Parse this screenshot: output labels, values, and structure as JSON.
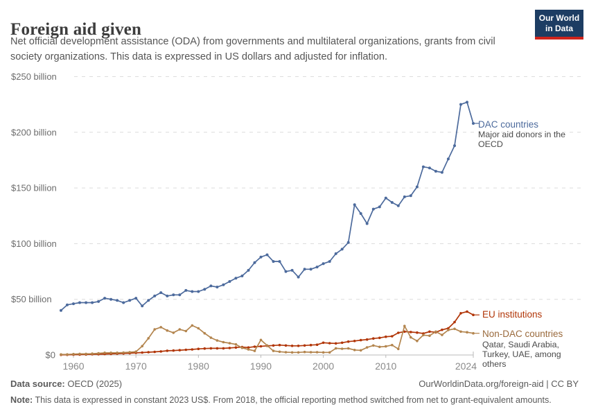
{
  "header": {
    "title": "Foreign aid given",
    "subtitle": "Net official development assistance (ODA) from governments and multilateral organizations, grants from civil society organizations. This data is expressed in US dollars and adjusted for inflation.",
    "logo": {
      "line1": "Our World",
      "line2": "in Data",
      "bg_color": "#1d3d63",
      "bar_color": "#cf241c"
    }
  },
  "chart_data": {
    "type": "line",
    "title": "Foreign aid given",
    "unit": "US$ billion (constant 2023 US$)",
    "x_range": [
      1958,
      2024
    ],
    "ylim": [
      0,
      250
    ],
    "grid": "dashed-horizontal",
    "legend_position": "right-end-labels",
    "xticks": [
      1960,
      1970,
      1980,
      1990,
      2000,
      2010,
      2024
    ],
    "yticks": [
      {
        "value": 0,
        "label": "$0"
      },
      {
        "value": 50,
        "label": "$50 billion"
      },
      {
        "value": 100,
        "label": "$100 billion"
      },
      {
        "value": 150,
        "label": "$150 billion"
      },
      {
        "value": 200,
        "label": "$200 billion"
      },
      {
        "value": 250,
        "label": "$250 billion"
      }
    ],
    "series": [
      {
        "name": "DAC countries",
        "annotation": "Major aid donors in the OECD",
        "color": "#4C6A9C",
        "values": [
          40,
          45,
          46,
          47,
          47,
          47,
          48,
          51,
          50,
          49,
          47,
          49,
          51,
          44,
          49,
          53,
          56,
          53,
          54,
          54,
          58,
          57,
          57,
          59,
          62,
          61,
          63,
          66,
          69,
          71,
          76,
          83,
          88,
          90,
          84,
          84,
          75,
          76,
          70,
          77,
          77,
          79,
          82,
          84,
          91,
          95,
          101,
          135,
          127,
          118,
          131,
          133,
          141,
          137,
          134,
          142,
          143,
          151,
          169,
          168,
          165,
          164,
          176,
          188,
          225,
          227,
          208
        ]
      },
      {
        "name": "EU institutions",
        "annotation": "",
        "color": "#B13507",
        "values": [
          0.1,
          0.2,
          0.3,
          0.4,
          0.5,
          0.6,
          0.7,
          0.9,
          1,
          1.2,
          1.4,
          1.6,
          1.9,
          2.2,
          2.5,
          2.8,
          3.2,
          3.8,
          4,
          4.3,
          4.7,
          5,
          5.5,
          5.8,
          6,
          6,
          6,
          6.3,
          6.7,
          7.1,
          6.7,
          7.5,
          7.8,
          8.2,
          8.5,
          8.9,
          8.5,
          8.2,
          8.2,
          8.5,
          8.9,
          9.2,
          11,
          10.6,
          10.4,
          11,
          12,
          12.6,
          13.3,
          13.9,
          14.8,
          15.4,
          16.4,
          16.8,
          19.9,
          21,
          20.6,
          20.1,
          19.3,
          21,
          20.4,
          22.6,
          24,
          29.5,
          37.5,
          39,
          36
        ]
      },
      {
        "name": "Non-DAC countries",
        "annotation": "Qatar, Saudi Arabia, Turkey, UAE, among others",
        "color": "#B3854E",
        "values": [
          0.5,
          0.5,
          0.8,
          1,
          1,
          1.2,
          1.5,
          2,
          2,
          2,
          2.2,
          2.5,
          3,
          8,
          15,
          23,
          25,
          22,
          20,
          23,
          21.5,
          26.5,
          24,
          19.5,
          15.5,
          13,
          11.5,
          10.6,
          9.5,
          6.4,
          5,
          3.7,
          13.5,
          8.5,
          3.7,
          2.9,
          2.5,
          2.3,
          2.3,
          2.7,
          2.5,
          2.5,
          2.3,
          2.3,
          6,
          5.6,
          5.9,
          4.5,
          4.2,
          6.8,
          8.5,
          7.3,
          7.7,
          8.9,
          5.4,
          26,
          15.8,
          12.6,
          17.9,
          17.3,
          21,
          18,
          22.4,
          23.5,
          21,
          20.4,
          19.5
        ]
      }
    ]
  },
  "footer": {
    "source_label": "Data source:",
    "source": " OECD (2025)",
    "link": "OurWorldinData.org/foreign-aid | CC BY",
    "note_label": "Note:",
    "note": " This data is expressed in constant 2023 US$. From 2018, the official reporting method switched from net to grant-equivalent amounts."
  }
}
